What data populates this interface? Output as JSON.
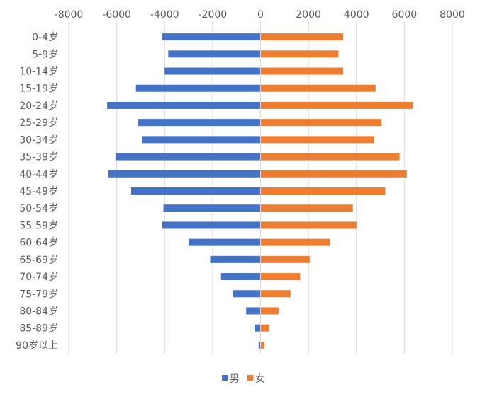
{
  "chart_data": {
    "type": "bar",
    "orientation": "horizontal",
    "title": "",
    "xlabel": "",
    "ylabel": "",
    "xlim": [
      -8000,
      8000
    ],
    "x_ticks": [
      "-8000",
      "-6000",
      "-4000",
      "-2000",
      "0",
      "2000",
      "4000",
      "6000",
      "8000"
    ],
    "grid": "vertical gridlines",
    "legend": "bottom",
    "categories": [
      "0-4岁",
      "5-9岁",
      "10-14岁",
      "15-19岁",
      "20-24岁",
      "25-29岁",
      "30-34岁",
      "35-39岁",
      "40-44岁",
      "45-49岁",
      "50-54岁",
      "55-59岁",
      "60-64岁",
      "65-69岁",
      "70-74岁",
      "75-79岁",
      "80-84岁",
      "85-89岁",
      "90岁以上"
    ],
    "series": [
      {
        "name": "男",
        "color": "#4472C4",
        "values": [
          -4100,
          -3850,
          -4000,
          -5200,
          -6400,
          -5100,
          -4950,
          -6050,
          -6350,
          -5400,
          -4050,
          -4100,
          -3000,
          -2100,
          -1650,
          -1150,
          -600,
          -250,
          -80
        ]
      },
      {
        "name": "女",
        "color": "#ED7D31",
        "values": [
          3450,
          3250,
          3450,
          4800,
          6350,
          5050,
          4750,
          5800,
          6100,
          5200,
          3850,
          4000,
          2900,
          2050,
          1650,
          1250,
          750,
          350,
          150
        ]
      }
    ]
  }
}
